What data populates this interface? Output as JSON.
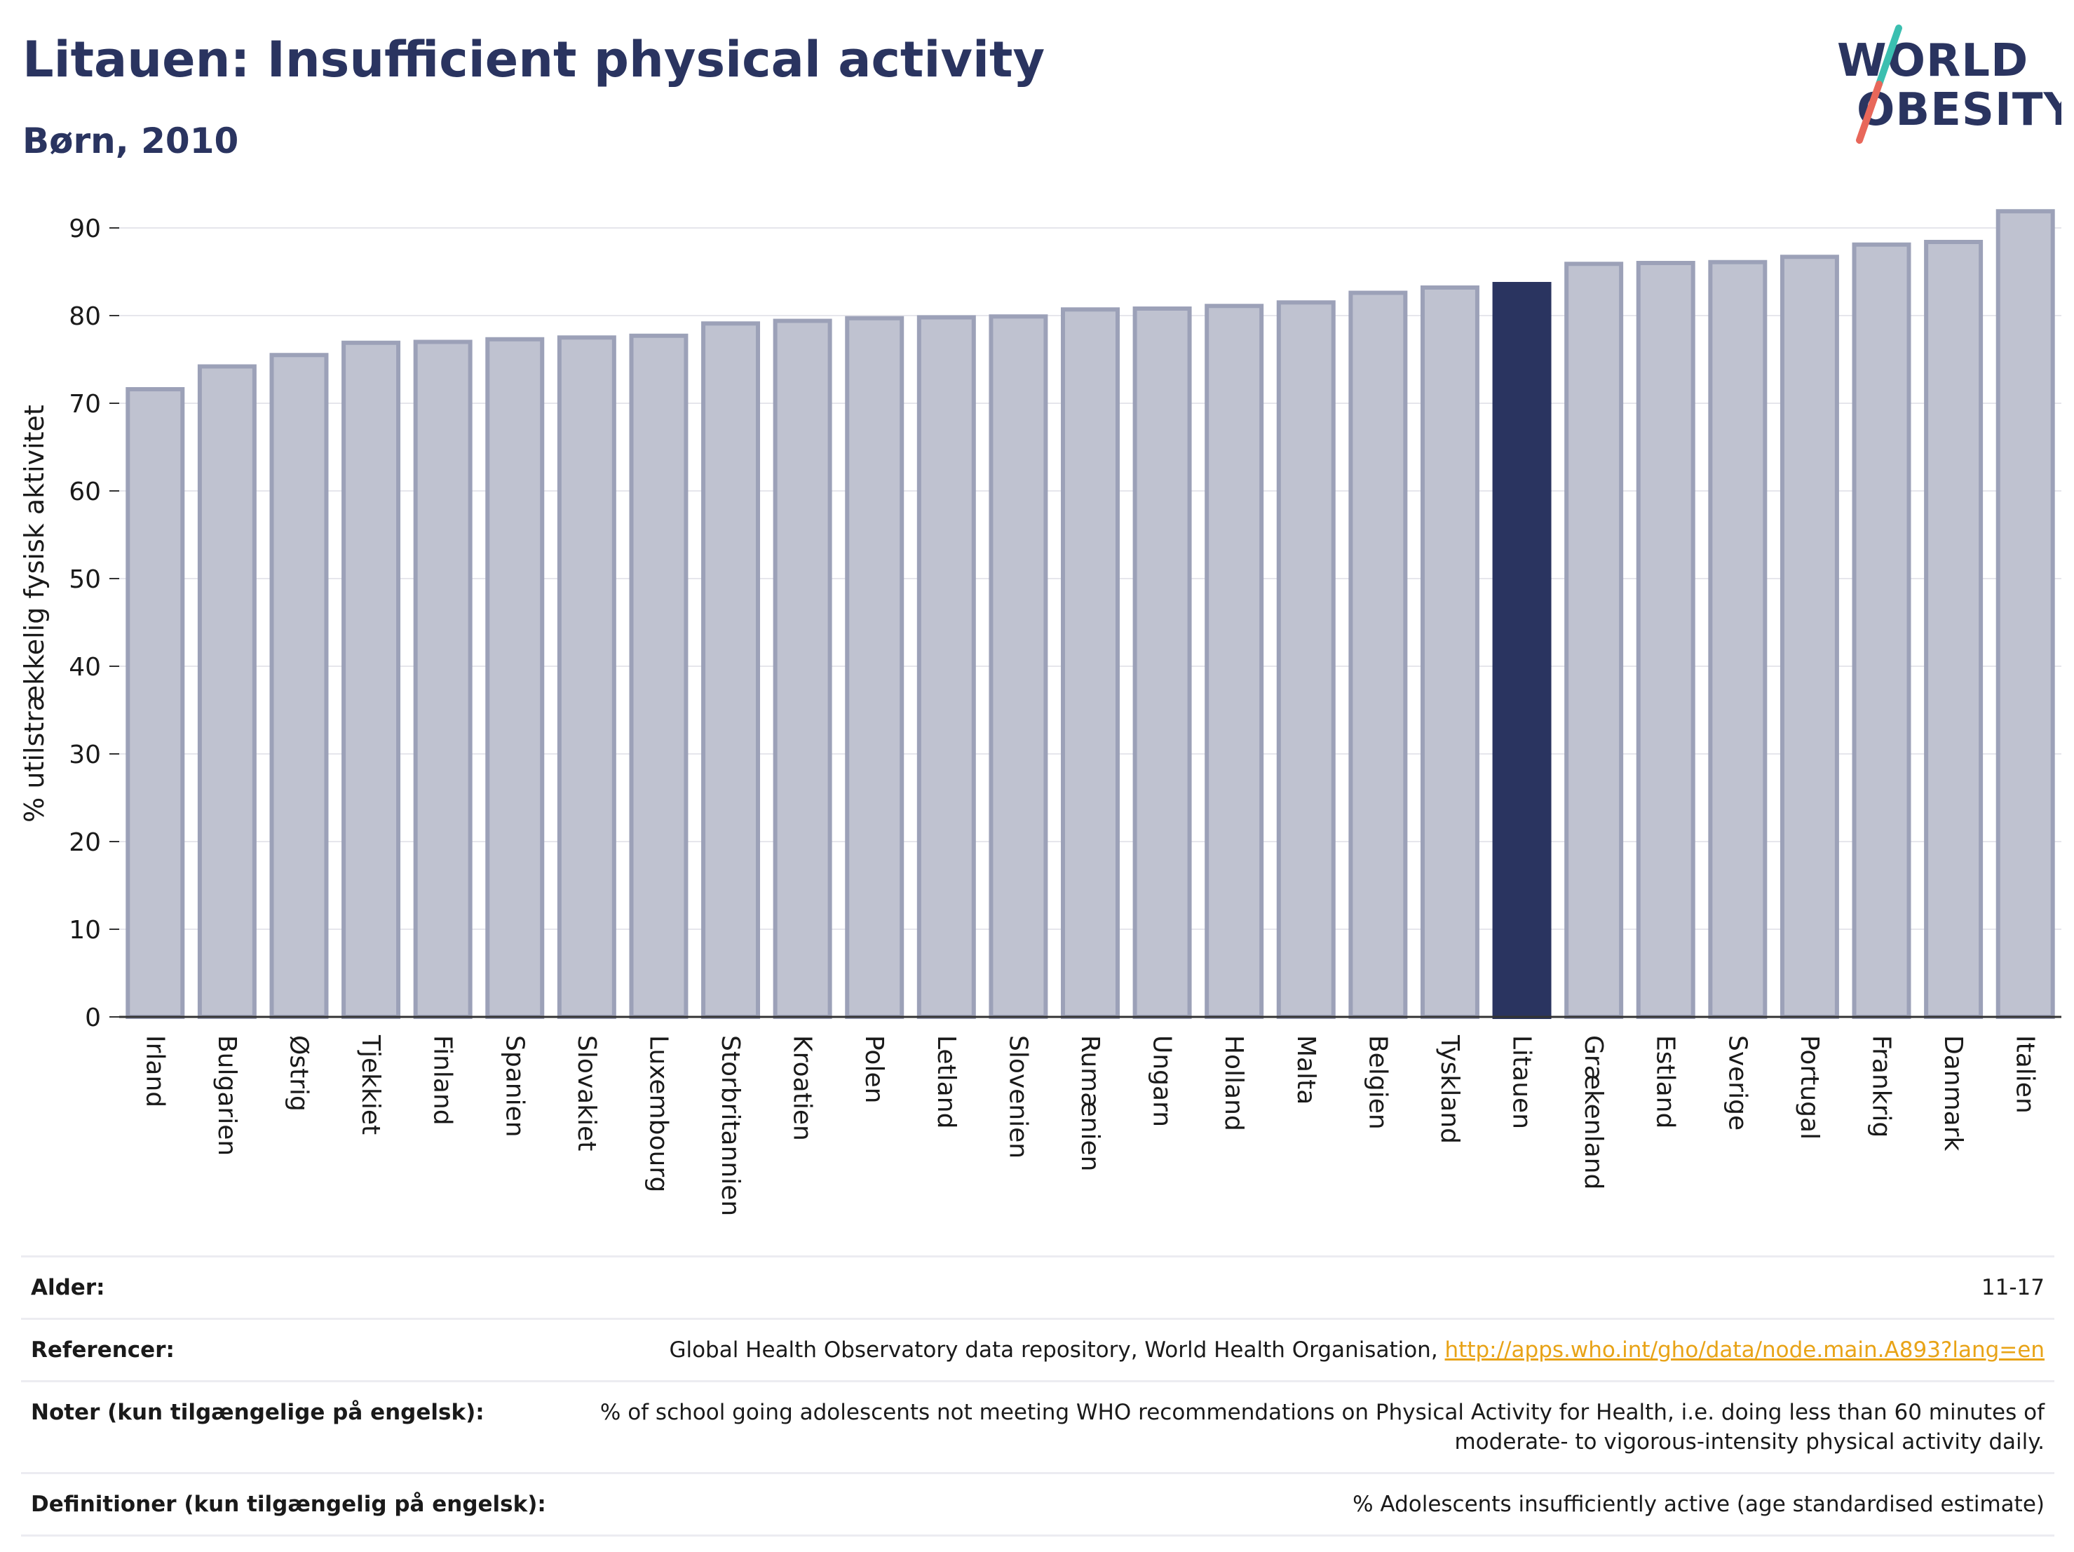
{
  "header": {
    "title": "Litauen: Insufficient physical activity",
    "subtitle": "Børn, 2010"
  },
  "logo": {
    "line1": "WORLD",
    "line2": "OBESITY",
    "accent_teal": "#3bbfb0",
    "accent_red": "#e8675a",
    "text_color": "#2a3460"
  },
  "chart_data": {
    "type": "bar",
    "title": "Litauen: Insufficient physical activity",
    "subtitle": "Børn, 2010",
    "ylabel": "% utilstrækkelig fysisk aktivitet",
    "xlabel": "",
    "ylim": [
      0,
      92
    ],
    "yticks": [
      0,
      10,
      20,
      30,
      40,
      50,
      60,
      70,
      80,
      90
    ],
    "grid": true,
    "highlight": "Litauen",
    "bar_color": "#bfc2d0",
    "bar_border_color": "#9ca1b8",
    "highlight_color": "#2a3460",
    "categories": [
      "Irland",
      "Bulgarien",
      "Østrig",
      "Tjekkiet",
      "Finland",
      "Spanien",
      "Slovakiet",
      "Luxembourg",
      "Storbritannien",
      "Kroatien",
      "Polen",
      "Letland",
      "Slovenien",
      "Rumænien",
      "Ungarn",
      "Holland",
      "Malta",
      "Belgien",
      "Tyskland",
      "Litauen",
      "Grækenland",
      "Estland",
      "Sverige",
      "Portugal",
      "Frankrig",
      "Danmark",
      "Italien"
    ],
    "values": [
      71.6,
      74.2,
      75.5,
      76.9,
      77.0,
      77.3,
      77.5,
      77.7,
      79.1,
      79.4,
      79.7,
      79.8,
      79.9,
      80.7,
      80.8,
      81.1,
      81.5,
      82.6,
      83.2,
      83.6,
      85.9,
      86.0,
      86.1,
      86.7,
      88.1,
      88.4,
      91.9
    ]
  },
  "meta": [
    {
      "label": "Alder:",
      "value": "11-17"
    },
    {
      "label": "Referencer:",
      "value": "Global Health Observatory data repository, World Health Organisation, ",
      "link": "http://apps.who.int/gho/data/node.main.A893?lang=en"
    },
    {
      "label": "Noter (kun tilgængelige på engelsk):",
      "value": "% of school going adolescents not meeting WHO recommendations on Physical Activity for Health, i.e. doing less than 60 minutes of moderate- to vigorous-intensity physical activity daily."
    },
    {
      "label": "Definitioner (kun tilgængelig på engelsk):",
      "value": "% Adolescents insufficiently active (age standardised estimate)"
    }
  ]
}
